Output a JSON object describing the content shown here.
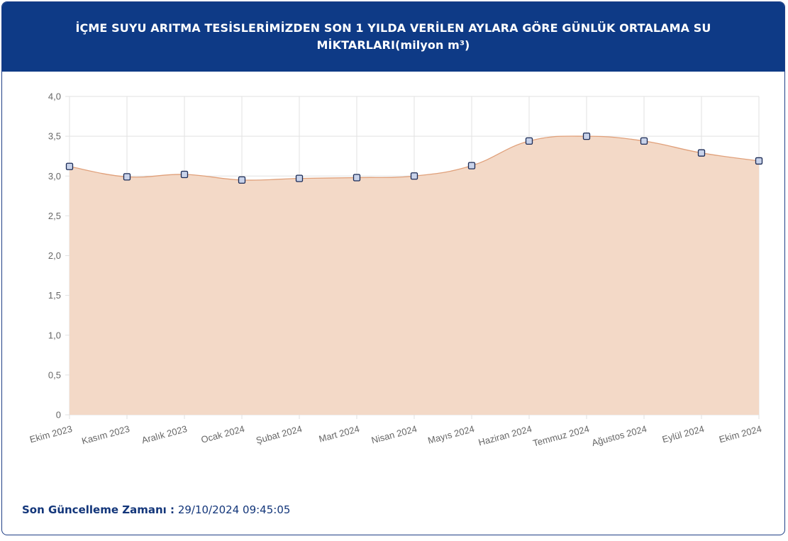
{
  "header": {
    "title": "İÇME SUYU ARITMA TESİSLERİMİZDEN SON 1 YILDA VERİLEN AYLARA GÖRE GÜNLÜK ORTALAMA SU MİKTARLARI(milyon m³)"
  },
  "footer": {
    "label": "Son Güncelleme Zamanı :",
    "value": "29/10/2024 09:45:05"
  },
  "colors": {
    "header_bg": "#0e3a86",
    "area_fill": "#f3d9c7",
    "line": "#e0a07a",
    "point_fill": "#c9d3ea",
    "point_stroke": "#1a2a55",
    "grid": "#e2e2e2"
  },
  "chart_data": {
    "type": "area",
    "categories": [
      "Ekim 2023",
      "Kasım 2023",
      "Aralık 2023",
      "Ocak 2024",
      "Şubat 2024",
      "Mart 2024",
      "Nisan 2024",
      "Mayıs 2024",
      "Haziran 2024",
      "Temmuz 2024",
      "Ağustos 2024",
      "Eylül 2024",
      "Ekim 2024"
    ],
    "values": [
      3.12,
      2.99,
      3.02,
      2.95,
      2.97,
      2.98,
      3.0,
      3.13,
      3.44,
      3.5,
      3.44,
      3.29,
      3.19
    ],
    "ylim": [
      0,
      4
    ],
    "y_ticks": [
      "0",
      "0,5",
      "1,0",
      "1,5",
      "2,0",
      "2,5",
      "3,0",
      "3,5",
      "4,0"
    ],
    "y_tick_values": [
      0,
      0.5,
      1.0,
      1.5,
      2.0,
      2.5,
      3.0,
      3.5,
      4.0
    ],
    "grid": true,
    "legend": "none"
  }
}
